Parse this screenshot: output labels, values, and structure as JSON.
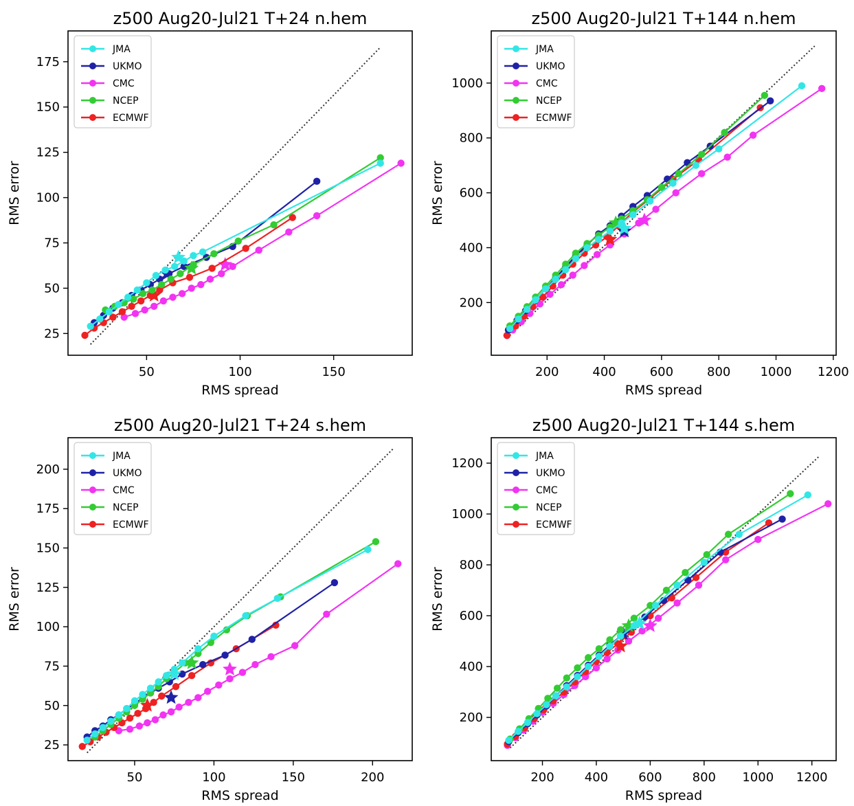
{
  "colors": {
    "JMA": "#33e6e6",
    "UKMO": "#1f22a6",
    "CMC": "#f233f2",
    "NCEP": "#33cc33",
    "ECMWF": "#ee2222",
    "diagonal": "#333333"
  },
  "chart_data": [
    {
      "type": "scatter",
      "title": "z500 Aug20-Jul21 T+24 n.hem",
      "xlabel": "RMS spread",
      "ylabel": "RMS error",
      "xlim": [
        8,
        192
      ],
      "ylim": [
        13,
        192
      ],
      "xticks": [
        50,
        100,
        150
      ],
      "yticks": [
        25,
        50,
        75,
        100,
        125,
        150,
        175
      ],
      "diagonal": [
        [
          20,
          19
        ],
        [
          175,
          183
        ]
      ],
      "legend_position": "upper left",
      "legend": [
        "JMA",
        "UKMO",
        "CMC",
        "NCEP",
        "ECMWF"
      ],
      "series": [
        {
          "name": "JMA",
          "x": [
            20,
            25,
            30,
            35,
            40,
            45,
            50,
            55,
            60,
            65,
            70,
            75,
            80,
            175
          ],
          "y": [
            29,
            33,
            37,
            41,
            45,
            49,
            53,
            57,
            60,
            62,
            65,
            68,
            70,
            119
          ],
          "star": [
            67,
            67
          ]
        },
        {
          "name": "UKMO",
          "x": [
            22,
            27,
            32,
            37,
            42,
            47,
            52,
            57,
            62,
            70,
            82,
            96,
            141
          ],
          "y": [
            31,
            35,
            39,
            42,
            46,
            49,
            52,
            55,
            58,
            62,
            67,
            73,
            109
          ],
          "star": [
            61,
            58
          ]
        },
        {
          "name": "CMC",
          "x": [
            38,
            44,
            49,
            54,
            59,
            64,
            69,
            74,
            79,
            84,
            90,
            96,
            110,
            126,
            141,
            186
          ],
          "y": [
            34,
            36,
            38,
            40,
            43,
            45,
            47,
            50,
            52,
            55,
            58,
            62,
            71,
            81,
            90,
            119
          ],
          "star": [
            92,
            63
          ]
        },
        {
          "name": "NCEP",
          "x": [
            28,
            33,
            38,
            43,
            48,
            53,
            58,
            63,
            68,
            75,
            86,
            99,
            118,
            175
          ],
          "y": [
            38,
            40,
            42,
            44,
            47,
            49,
            52,
            55,
            58,
            63,
            69,
            76,
            85,
            122
          ],
          "star": [
            74,
            61
          ]
        },
        {
          "name": "ECMWF",
          "x": [
            17,
            22,
            27,
            32,
            37,
            42,
            47,
            52,
            57,
            64,
            73,
            85,
            103,
            128
          ],
          "y": [
            24,
            28,
            31,
            34,
            37,
            40,
            43,
            46,
            49,
            53,
            56,
            61,
            72,
            89
          ],
          "star": [
            54,
            46
          ]
        }
      ]
    },
    {
      "type": "scatter",
      "title": "z500 Aug20-Jul21 T+144 n.hem",
      "xlabel": "RMS spread",
      "ylabel": "RMS error",
      "xlim": [
        5,
        1210
      ],
      "ylim": [
        8,
        1190
      ],
      "xticks": [
        200,
        400,
        600,
        800,
        1000,
        1200
      ],
      "yticks": [
        200,
        400,
        600,
        800,
        1000
      ],
      "diagonal": [
        [
          70,
          80
        ],
        [
          1135,
          1135
        ]
      ],
      "legend_position": "upper left",
      "legend": [
        "JMA",
        "UKMO",
        "CMC",
        "NCEP",
        "ECMWF"
      ],
      "series": [
        {
          "name": "JMA",
          "x": [
            70,
            100,
            130,
            160,
            195,
            230,
            265,
            300,
            340,
            380,
            420,
            460,
            500,
            560,
            640,
            720,
            800,
            1090
          ],
          "y": [
            105,
            140,
            175,
            210,
            250,
            285,
            320,
            360,
            400,
            430,
            460,
            490,
            520,
            570,
            635,
            700,
            760,
            990
          ],
          "star": [
            470,
            470
          ]
        },
        {
          "name": "UKMO",
          "x": [
            65,
            95,
            125,
            160,
            195,
            230,
            265,
            300,
            340,
            380,
            420,
            460,
            500,
            550,
            620,
            690,
            770,
            980
          ],
          "y": [
            100,
            135,
            170,
            210,
            250,
            290,
            330,
            370,
            410,
            450,
            480,
            515,
            550,
            590,
            650,
            710,
            770,
            935
          ],
          "star": [
            470,
            460
          ]
        },
        {
          "name": "CMC",
          "x": [
            60,
            80,
            110,
            140,
            175,
            210,
            250,
            290,
            330,
            375,
            420,
            470,
            520,
            580,
            650,
            740,
            830,
            920,
            1160
          ],
          "y": [
            80,
            100,
            130,
            160,
            195,
            230,
            265,
            300,
            335,
            375,
            410,
            450,
            490,
            540,
            600,
            670,
            730,
            810,
            980
          ],
          "star": [
            540,
            500
          ]
        },
        {
          "name": "NCEP",
          "x": [
            70,
            100,
            130,
            160,
            195,
            230,
            265,
            300,
            340,
            380,
            420,
            460,
            500,
            550,
            600,
            660,
            740,
            820,
            960
          ],
          "y": [
            115,
            150,
            185,
            220,
            260,
            300,
            340,
            380,
            415,
            445,
            475,
            505,
            535,
            575,
            620,
            670,
            740,
            820,
            955
          ],
          "star": [
            440,
            490
          ]
        },
        {
          "name": "ECMWF",
          "x": [
            60,
            90,
            120,
            150,
            185,
            220,
            255,
            290,
            330,
            370,
            410,
            450,
            500,
            560,
            640,
            730,
            945
          ],
          "y": [
            80,
            115,
            150,
            185,
            220,
            260,
            300,
            340,
            380,
            410,
            440,
            480,
            530,
            580,
            650,
            720,
            910
          ],
          "star": [
            420,
            430
          ]
        }
      ]
    },
    {
      "type": "scatter",
      "title": "z500 Aug20-Jul21 T+24 s.hem",
      "xlabel": "RMS spread",
      "ylabel": "RMS error",
      "xlim": [
        8,
        225
      ],
      "ylim": [
        15,
        220
      ],
      "xticks": [
        50,
        100,
        150,
        200
      ],
      "yticks": [
        25,
        50,
        75,
        100,
        125,
        150,
        175,
        200
      ],
      "diagonal": [
        [
          20,
          20
        ],
        [
          213,
          213
        ]
      ],
      "legend_position": "upper left",
      "legend": [
        "JMA",
        "UKMO",
        "CMC",
        "NCEP",
        "ECMWF"
      ],
      "series": [
        {
          "name": "JMA",
          "x": [
            20,
            25,
            30,
            35,
            40,
            45,
            50,
            55,
            60,
            65,
            70,
            75,
            80,
            90,
            100,
            120,
            140,
            197
          ],
          "y": [
            28,
            32,
            36,
            40,
            44,
            48,
            53,
            57,
            61,
            65,
            69,
            73,
            77,
            86,
            94,
            107,
            118,
            149
          ],
          "star": [
            75,
            70
          ]
        },
        {
          "name": "UKMO",
          "x": [
            20,
            25,
            30,
            35,
            40,
            45,
            50,
            55,
            60,
            65,
            72,
            80,
            93,
            107,
            124,
            176
          ],
          "y": [
            30,
            34,
            37,
            41,
            44,
            48,
            51,
            55,
            58,
            61,
            65,
            70,
            76,
            82,
            92,
            128
          ],
          "star": [
            73,
            55
          ]
        },
        {
          "name": "CMC",
          "x": [
            40,
            47,
            53,
            58,
            63,
            68,
            73,
            78,
            84,
            90,
            96,
            103,
            110,
            118,
            126,
            136,
            151,
            171,
            216
          ],
          "y": [
            34,
            35,
            37,
            39,
            41,
            44,
            46,
            49,
            52,
            55,
            59,
            63,
            67,
            71,
            76,
            81,
            88,
            108,
            140
          ],
          "star": [
            110,
            73
          ]
        },
        {
          "name": "NCEP",
          "x": [
            25,
            30,
            35,
            40,
            45,
            50,
            55,
            60,
            65,
            70,
            75,
            82,
            90,
            98,
            108,
            121,
            142,
            202
          ],
          "y": [
            30,
            34,
            38,
            42,
            46,
            50,
            54,
            58,
            62,
            67,
            71,
            77,
            83,
            90,
            98,
            107,
            119,
            154
          ],
          "star": [
            86,
            77
          ]
        },
        {
          "name": "ECMWF",
          "x": [
            17,
            22,
            27,
            32,
            37,
            42,
            47,
            52,
            57,
            62,
            67,
            76,
            86,
            98,
            114,
            139
          ],
          "y": [
            24,
            27,
            30,
            33,
            36,
            39,
            42,
            45,
            48,
            52,
            56,
            62,
            69,
            77,
            86,
            101
          ],
          "star": [
            58,
            50
          ]
        }
      ]
    },
    {
      "type": "scatter",
      "title": "z500 Aug20-Jul21 T+144 s.hem",
      "xlabel": "RMS spread",
      "ylabel": "RMS error",
      "xlim": [
        10,
        1290
      ],
      "ylim": [
        30,
        1300
      ],
      "xticks": [
        200,
        400,
        600,
        800,
        1000,
        1200
      ],
      "yticks": [
        200,
        400,
        600,
        800,
        1000,
        1200
      ],
      "diagonal": [
        [
          80,
          80
        ],
        [
          1225,
          1225
        ]
      ],
      "legend_position": "upper left",
      "legend": [
        "JMA",
        "UKMO",
        "CMC",
        "NCEP",
        "ECMWF"
      ],
      "series": [
        {
          "name": "JMA",
          "x": [
            75,
            110,
            145,
            180,
            215,
            250,
            290,
            330,
            370,
            410,
            450,
            490,
            540,
            620,
            700,
            800,
            930,
            1185
          ],
          "y": [
            110,
            145,
            180,
            215,
            250,
            285,
            320,
            360,
            400,
            440,
            480,
            520,
            560,
            640,
            720,
            810,
            920,
            1075
          ],
          "star": [
            560,
            570
          ]
        },
        {
          "name": "UKMO",
          "x": [
            75,
            110,
            145,
            180,
            215,
            250,
            290,
            330,
            370,
            410,
            450,
            490,
            530,
            580,
            650,
            740,
            860,
            1090
          ],
          "y": [
            105,
            140,
            175,
            210,
            245,
            285,
            325,
            365,
            405,
            445,
            485,
            520,
            555,
            595,
            660,
            740,
            850,
            980
          ],
          "star": [
            500,
            530
          ]
        },
        {
          "name": "CMC",
          "x": [
            70,
            100,
            130,
            165,
            200,
            240,
            280,
            320,
            360,
            400,
            440,
            480,
            520,
            570,
            630,
            700,
            780,
            880,
            1000,
            1260
          ],
          "y": [
            90,
            120,
            150,
            185,
            220,
            255,
            290,
            325,
            360,
            395,
            430,
            465,
            500,
            540,
            590,
            650,
            720,
            820,
            900,
            1040
          ],
          "star": [
            600,
            560
          ]
        },
        {
          "name": "NCEP",
          "x": [
            80,
            115,
            150,
            185,
            220,
            255,
            290,
            330,
            370,
            410,
            450,
            490,
            540,
            600,
            660,
            730,
            810,
            890,
            1120
          ],
          "y": [
            115,
            155,
            195,
            235,
            275,
            315,
            355,
            395,
            435,
            470,
            505,
            545,
            590,
            640,
            700,
            770,
            840,
            920,
            1080
          ],
          "star": [
            520,
            560
          ]
        },
        {
          "name": "ECMWF",
          "x": [
            70,
            100,
            135,
            170,
            205,
            240,
            280,
            320,
            360,
            400,
            440,
            480,
            530,
            600,
            680,
            770,
            880,
            1040
          ],
          "y": [
            95,
            125,
            160,
            195,
            230,
            265,
            300,
            340,
            380,
            420,
            455,
            490,
            535,
            600,
            670,
            750,
            850,
            965
          ],
          "star": [
            490,
            480
          ]
        }
      ]
    }
  ]
}
